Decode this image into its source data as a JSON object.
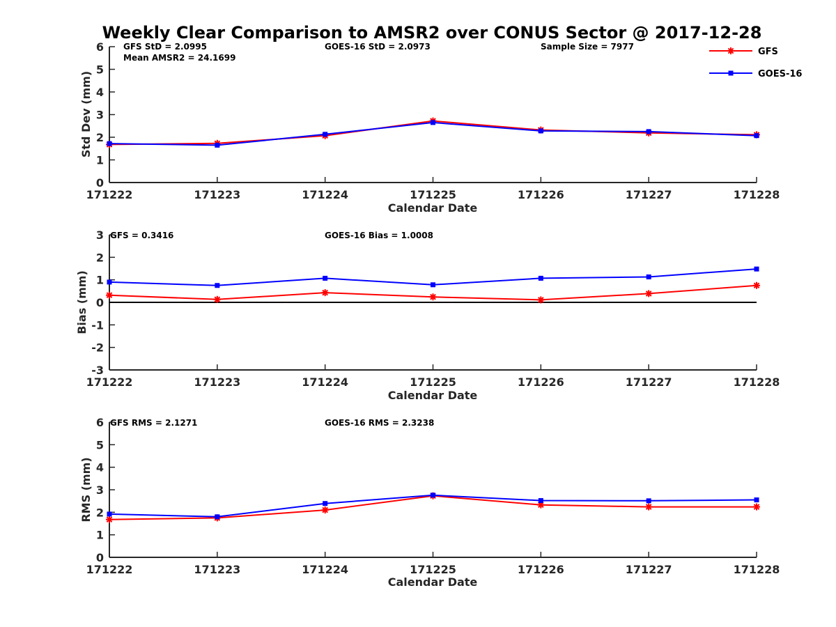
{
  "chart_data": {
    "title": "Weekly Clear Comparison to AMSR2 over CONUS Sector @ 2017-12-28",
    "legend": {
      "placement": "top-right",
      "entries": [
        {
          "name": "GFS",
          "color": "#ff0000",
          "marker": "asterisk"
        },
        {
          "name": "GOES-16",
          "color": "#0000ff",
          "marker": "square"
        }
      ]
    },
    "panels": [
      {
        "type": "line",
        "ylabel": "Std Dev (mm)",
        "xlabel": "Calendar Date",
        "categories": [
          "171222",
          "171223",
          "171224",
          "171225",
          "171226",
          "171227",
          "171228"
        ],
        "ylim": [
          0,
          6
        ],
        "yticks": [
          "0",
          "1",
          "2",
          "3",
          "4",
          "5",
          "6"
        ],
        "zero_line": false,
        "annotations": [
          {
            "id": "a1",
            "text": "GFS StD = 2.0995"
          },
          {
            "id": "a2",
            "text": "Mean AMSR2 = 24.1699"
          },
          {
            "id": "a3",
            "text": "GOES-16 StD = 2.0973"
          },
          {
            "id": "a4",
            "text": "Sample Size = 7977"
          }
        ],
        "series": [
          {
            "name": "GFS",
            "color": "#ff0000",
            "values": [
              1.68,
              1.73,
              2.07,
              2.72,
              2.32,
              2.19,
              2.11
            ]
          },
          {
            "name": "GOES-16",
            "color": "#0000ff",
            "values": [
              1.72,
              1.65,
              2.13,
              2.65,
              2.28,
              2.25,
              2.07
            ]
          }
        ]
      },
      {
        "type": "line",
        "ylabel": "Bias (mm)",
        "xlabel": "Calendar Date",
        "categories": [
          "171222",
          "171223",
          "171224",
          "171225",
          "171226",
          "171227",
          "171228"
        ],
        "ylim": [
          -3,
          3
        ],
        "yticks": [
          "-3",
          "-2",
          "-1",
          "0",
          "1",
          "2",
          "3"
        ],
        "zero_line": true,
        "annotations": [
          {
            "id": "b1",
            "text": "GFS = 0.3416"
          },
          {
            "id": "b2",
            "text": "GOES-16 Bias  = 1.0008"
          }
        ],
        "series": [
          {
            "name": "GFS",
            "color": "#ff0000",
            "values": [
              0.32,
              0.13,
              0.43,
              0.24,
              0.11,
              0.39,
              0.75
            ]
          },
          {
            "name": "GOES-16",
            "color": "#0000ff",
            "values": [
              0.9,
              0.75,
              1.07,
              0.78,
              1.07,
              1.13,
              1.48
            ]
          }
        ]
      },
      {
        "type": "line",
        "ylabel": "RMS (mm)",
        "xlabel": "Calendar Date",
        "categories": [
          "171222",
          "171223",
          "171224",
          "171225",
          "171226",
          "171227",
          "171228"
        ],
        "ylim": [
          0,
          6
        ],
        "yticks": [
          "0",
          "1",
          "2",
          "3",
          "4",
          "5",
          "6"
        ],
        "zero_line": false,
        "annotations": [
          {
            "id": "c1",
            "text": "GFS RMS = 2.1271"
          },
          {
            "id": "c2",
            "text": "GOES-16 RMS = 2.3238"
          }
        ],
        "series": [
          {
            "name": "GFS",
            "color": "#ff0000",
            "values": [
              1.68,
              1.75,
              2.1,
              2.73,
              2.33,
              2.24,
              2.24
            ]
          },
          {
            "name": "GOES-16",
            "color": "#0000ff",
            "values": [
              1.92,
              1.8,
              2.39,
              2.76,
              2.52,
              2.51,
              2.55
            ]
          }
        ]
      }
    ]
  }
}
